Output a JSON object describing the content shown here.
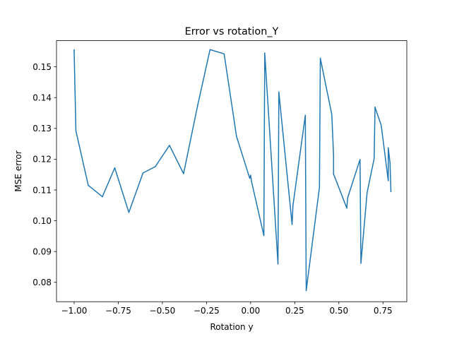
{
  "chart_data": {
    "type": "line",
    "title": "Error vs rotation_Y",
    "xlabel": "Rotation y",
    "ylabel": "MSE error",
    "xlim": [
      -1.1,
      0.885
    ],
    "ylim": [
      0.0737,
      0.1585
    ],
    "xticks": [
      {
        "value": -1.0,
        "label": "−1.00"
      },
      {
        "value": -0.75,
        "label": "−0.75"
      },
      {
        "value": -0.5,
        "label": "−0.50"
      },
      {
        "value": -0.25,
        "label": "−0.25"
      },
      {
        "value": 0.0,
        "label": "0.00"
      },
      {
        "value": 0.25,
        "label": "0.25"
      },
      {
        "value": 0.5,
        "label": "0.50"
      },
      {
        "value": 0.75,
        "label": "0.75"
      }
    ],
    "yticks": [
      {
        "value": 0.08,
        "label": "0.08"
      },
      {
        "value": 0.09,
        "label": "0.09"
      },
      {
        "value": 0.1,
        "label": "0.10"
      },
      {
        "value": 0.11,
        "label": "0.11"
      },
      {
        "value": 0.12,
        "label": "0.12"
      },
      {
        "value": 0.13,
        "label": "0.13"
      },
      {
        "value": 0.14,
        "label": "0.14"
      },
      {
        "value": 0.15,
        "label": "0.15"
      }
    ],
    "grid": false,
    "series": [
      {
        "color": "#1f77b4",
        "x": [
          -1.0,
          -1.0,
          -0.99,
          -0.92,
          -0.84,
          -0.77,
          -0.69,
          -0.61,
          -0.54,
          -0.46,
          -0.38,
          -0.3,
          -0.23,
          -0.15,
          -0.08,
          -0.005,
          0.0,
          0.005,
          0.075,
          0.08,
          0.155,
          0.16,
          0.235,
          0.24,
          0.31,
          0.315,
          0.39,
          0.395,
          0.46,
          0.47,
          0.47,
          0.545,
          0.55,
          0.62,
          0.625,
          0.66,
          0.7,
          0.705,
          0.74,
          0.78,
          0.78,
          0.79,
          0.795
        ],
        "y": [
          0.1555,
          0.1548,
          0.1292,
          0.1115,
          0.1078,
          0.1172,
          0.1027,
          0.1155,
          0.1176,
          0.1245,
          0.1153,
          0.1375,
          0.1556,
          0.1542,
          0.1274,
          0.1138,
          0.1148,
          0.1128,
          0.0952,
          0.1545,
          0.086,
          0.1418,
          0.0988,
          0.105,
          0.1343,
          0.0773,
          0.1108,
          0.1528,
          0.1345,
          0.1212,
          0.1152,
          0.1041,
          0.1075,
          0.1199,
          0.0862,
          0.1091,
          0.1202,
          0.1369,
          0.131,
          0.113,
          0.1237,
          0.1188,
          0.1095
        ]
      }
    ]
  }
}
